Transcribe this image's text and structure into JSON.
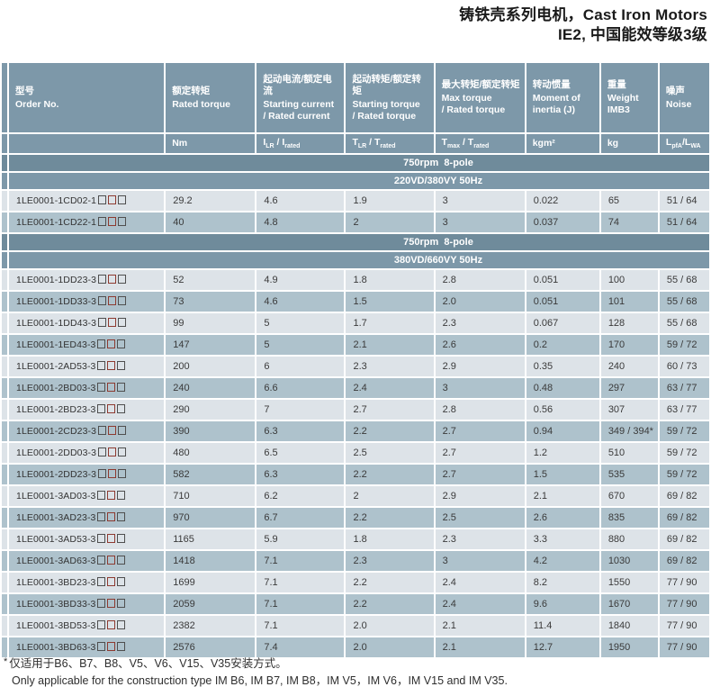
{
  "title": {
    "line1": "铸铁壳系列电机，Cast Iron Motors",
    "line2": "IE2, 中国能效等级3级"
  },
  "colors": {
    "header_bg": "#7d98a9",
    "speed_band_bg": "#6f8b9b",
    "row_light_bg": "#dde3e8",
    "row_dark_bg": "#aec2cc",
    "placeholder_box_red": "#8d3a30",
    "text_dark": "#3a3a3a"
  },
  "table": {
    "columns": [
      {
        "zh": "型号",
        "en": "Order No.",
        "unit": ""
      },
      {
        "zh": "额定转矩",
        "en": "Rated torque",
        "unit": "Nm"
      },
      {
        "zh": "起动电流/额定电流",
        "en": "Starting current\n/ Rated current",
        "unit": "I~LR~ / I~rated~"
      },
      {
        "zh": "起动转矩/额定转矩",
        "en": "Starting torque\n/ Rated torque",
        "unit": "T~LR~ / T~rated~"
      },
      {
        "zh": "最大转矩/额定转矩",
        "en": "Max torque\n/ Rated torque",
        "unit": "T~max~ / T~rated~"
      },
      {
        "zh": "转动惯量",
        "en": "Moment of\ninertia (J)",
        "unit": "kgm²"
      },
      {
        "zh": "重量",
        "en": "Weight\nIMB3",
        "unit": "kg"
      },
      {
        "zh": "噪声",
        "en": "Noise",
        "unit": "L~pfA~/L~WA~"
      }
    ],
    "order_placeholder_boxes": 3,
    "order_placeholder_red_index": 1,
    "sections": [
      {
        "speed_band": "750rpm  8-pole",
        "voltage_band": "220VD/380VY 50Hz",
        "rows": [
          {
            "order": "1LE0001-1CD02-1",
            "values": [
              "29.2",
              "4.6",
              "1.9",
              "3",
              "0.022",
              "65",
              "51 / 64"
            ]
          },
          {
            "order": "1LE0001-1CD22-1",
            "values": [
              "40",
              "4.8",
              "2",
              "3",
              "0.037",
              "74",
              "51 / 64"
            ]
          }
        ]
      },
      {
        "speed_band": "750rpm  8-pole",
        "voltage_band": "380VD/660VY 50Hz",
        "rows": [
          {
            "order": "1LE0001-1DD23-3",
            "values": [
              "52",
              "4.9",
              "1.8",
              "2.8",
              "0.051",
              "100",
              "55 / 68"
            ]
          },
          {
            "order": "1LE0001-1DD33-3",
            "values": [
              "73",
              "4.6",
              "1.5",
              "2.0",
              "0.051",
              "101",
              "55 / 68"
            ]
          },
          {
            "order": "1LE0001-1DD43-3",
            "values": [
              "99",
              "5",
              "1.7",
              "2.3",
              "0.067",
              "128",
              "55 / 68"
            ]
          },
          {
            "order": "1LE0001-1ED43-3",
            "values": [
              "147",
              "5",
              "2.1",
              "2.6",
              "0.2",
              "170",
              "59 / 72"
            ]
          },
          {
            "order": "1LE0001-2AD53-3",
            "values": [
              "200",
              "6",
              "2.3",
              "2.9",
              "0.35",
              "240",
              "60 / 73"
            ]
          },
          {
            "order": "1LE0001-2BD03-3",
            "values": [
              "240",
              "6.6",
              "2.4",
              "3",
              "0.48",
              "297",
              "63 / 77"
            ]
          },
          {
            "order": "1LE0001-2BD23-3",
            "values": [
              "290",
              "7",
              "2.7",
              "2.8",
              "0.56",
              "307",
              "63 / 77"
            ]
          },
          {
            "order": "1LE0001-2CD23-3",
            "values": [
              "390",
              "6.3",
              "2.2",
              "2.7",
              "0.94",
              "349 / 394*",
              "59 / 72"
            ]
          },
          {
            "order": "1LE0001-2DD03-3",
            "values": [
              "480",
              "6.5",
              "2.5",
              "2.7",
              "1.2",
              "510",
              "59 / 72"
            ]
          },
          {
            "order": "1LE0001-2DD23-3",
            "values": [
              "582",
              "6.3",
              "2.2",
              "2.7",
              "1.5",
              "535",
              "59 / 72"
            ]
          },
          {
            "order": "1LE0001-3AD03-3",
            "values": [
              "710",
              "6.2",
              "2",
              "2.9",
              "2.1",
              "670",
              "69 / 82"
            ]
          },
          {
            "order": "1LE0001-3AD23-3",
            "values": [
              "970",
              "6.7",
              "2.2",
              "2.5",
              "2.6",
              "835",
              "69 / 82"
            ]
          },
          {
            "order": "1LE0001-3AD53-3",
            "values": [
              "1165",
              "5.9",
              "1.8",
              "2.3",
              "3.3",
              "880",
              "69 / 82"
            ]
          },
          {
            "order": "1LE0001-3AD63-3",
            "values": [
              "1418",
              "7.1",
              "2.3",
              "3",
              "4.2",
              "1030",
              "69 / 82"
            ]
          },
          {
            "order": "1LE0001-3BD23-3",
            "values": [
              "1699",
              "7.1",
              "2.2",
              "2.4",
              "8.2",
              "1550",
              "77 / 90"
            ]
          },
          {
            "order": "1LE0001-3BD33-3",
            "values": [
              "2059",
              "7.1",
              "2.2",
              "2.4",
              "9.6",
              "1670",
              "77 / 90"
            ]
          },
          {
            "order": "1LE0001-3BD53-3",
            "values": [
              "2382",
              "7.1",
              "2.0",
              "2.1",
              "11.4",
              "1840",
              "77 / 90"
            ]
          },
          {
            "order": "1LE0001-3BD63-3",
            "values": [
              "2576",
              "7.4",
              "2.0",
              "2.1",
              "12.7",
              "1950",
              "77 / 90"
            ]
          }
        ]
      }
    ]
  },
  "footer": {
    "star": "*",
    "note_zh": "仅适用于B6、B7、B8、V5、V6、V15、V35安装方式。",
    "note_en": "Only applicable for the construction type IM B6, IM B7, IM B8，IM V5，IM V6，IM V15 and IM V35."
  }
}
